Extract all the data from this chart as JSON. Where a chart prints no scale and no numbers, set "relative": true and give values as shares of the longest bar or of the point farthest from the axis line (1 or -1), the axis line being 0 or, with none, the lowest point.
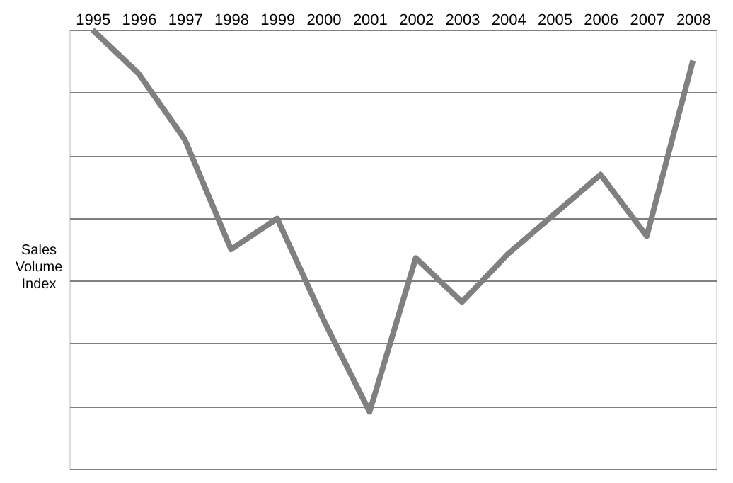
{
  "chart_data": {
    "type": "line",
    "ylabel": "Sales Volume Index",
    "relative": true,
    "categories": [
      "1995",
      "1996",
      "1997",
      "1998",
      "1999",
      "2000",
      "2001",
      "2002",
      "2003",
      "2004",
      "2005",
      "2006",
      "2007",
      "2008"
    ],
    "series": [
      {
        "color": "#808080",
        "values": [
          1.0,
          0.9,
          0.75,
          0.5,
          0.57,
          0.34,
          0.13,
          0.48,
          0.38,
          0.49,
          0.58,
          0.67,
          0.53,
          0.93
        ]
      }
    ],
    "grid": "y",
    "marker": "none",
    "line_style": "solid"
  }
}
